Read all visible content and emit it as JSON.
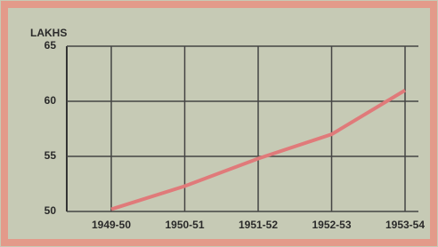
{
  "chart_data": {
    "type": "line",
    "y_label": "LAKHS",
    "categories": [
      "1949-50",
      "1950-51",
      "1951-52",
      "1952-53",
      "1953-54"
    ],
    "values": [
      50.2,
      52.3,
      54.8,
      57,
      61
    ],
    "color": "#e07a7a",
    "ylim": [
      50,
      65
    ],
    "yticks": [
      50,
      55,
      60,
      65
    ],
    "grid": true
  }
}
